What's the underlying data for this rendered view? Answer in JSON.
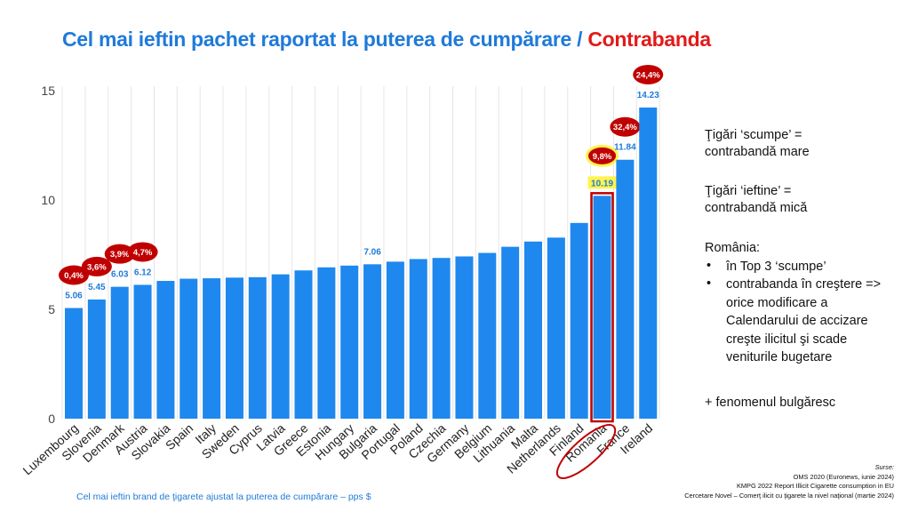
{
  "title": {
    "main": "Cel mai ieftin pachet raportat la puterea de cumpărare /",
    "highlight": "Contrabanda"
  },
  "chart_data": {
    "type": "bar",
    "categories": [
      "Luxembourg",
      "Slovenia",
      "Denmark",
      "Austria",
      "Slovakia",
      "Spain",
      "Italy",
      "Sweden",
      "Cyprus",
      "Latvia",
      "Greece",
      "Estonia",
      "Hungary",
      "Bulgaria",
      "Portugal",
      "Poland",
      "Czechia",
      "Germany",
      "Belgium",
      "Lithuania",
      "Malta",
      "Netherlands",
      "Finland",
      "Romania",
      "France",
      "Ireland"
    ],
    "values": [
      5.06,
      5.45,
      6.03,
      6.12,
      6.3,
      6.4,
      6.42,
      6.45,
      6.47,
      6.6,
      6.78,
      6.92,
      7.0,
      7.06,
      7.18,
      7.3,
      7.35,
      7.42,
      7.58,
      7.86,
      8.1,
      8.28,
      8.95,
      10.19,
      11.84,
      14.23
    ],
    "value_labels": [
      "5.06",
      "5.45",
      "6.03",
      "6.12",
      "",
      "",
      "",
      "",
      "",
      "",
      "",
      "",
      "",
      "7.06",
      "",
      "",
      "",
      "",
      "",
      "",
      "",
      "",
      "",
      "10.19",
      "11.84",
      "14.23"
    ],
    "smuggling_labels": [
      "0,4%",
      "3,6%",
      "3,9%",
      "4,7%",
      "",
      "",
      "",
      "",
      "",
      "",
      "",
      "",
      "",
      "",
      "",
      "",
      "",
      "",
      "",
      "",
      "",
      "",
      "",
      "9,8%",
      "32,4%",
      "24,4%"
    ],
    "ylim": [
      0,
      15
    ],
    "yticks": [
      0,
      5,
      10,
      15
    ],
    "highlight_category": "Romania",
    "grid": true,
    "colors": {
      "bar": "#1e88ee",
      "value_label": "#1f7ad8",
      "badge": "#c00000",
      "highlight_border": "#c00000",
      "highlight_fill": "#fff44f"
    }
  },
  "notes": {
    "expensive": "Ţigări ‘scumpe’ = contrabandă mare",
    "cheap": "Ţigări ‘ieftine’ = contrabandă mică",
    "romania_title": "România:",
    "bullets": [
      "în Top 3 ‘scumpe’",
      "contrabanda în creştere => orice modificare a Calendarului de accizare creşte ilicitul şi scade veniturile bugetare"
    ],
    "bulgarian": "+ fenomenul bulgăresc"
  },
  "caption": "Cel mai ieftin brand de ţigarete ajustat la puterea de cumpărare – pps $",
  "sources": {
    "heading": "Surse:",
    "lines": [
      "OMS 2020 (Euronews, iunie 2024)",
      "KMPG 2022 Report Illicit Cigarette consumption in EU",
      "Cercetare Novel – Comerţ ilicit cu ţigarete la nivel naţional (martie 2024)"
    ]
  }
}
